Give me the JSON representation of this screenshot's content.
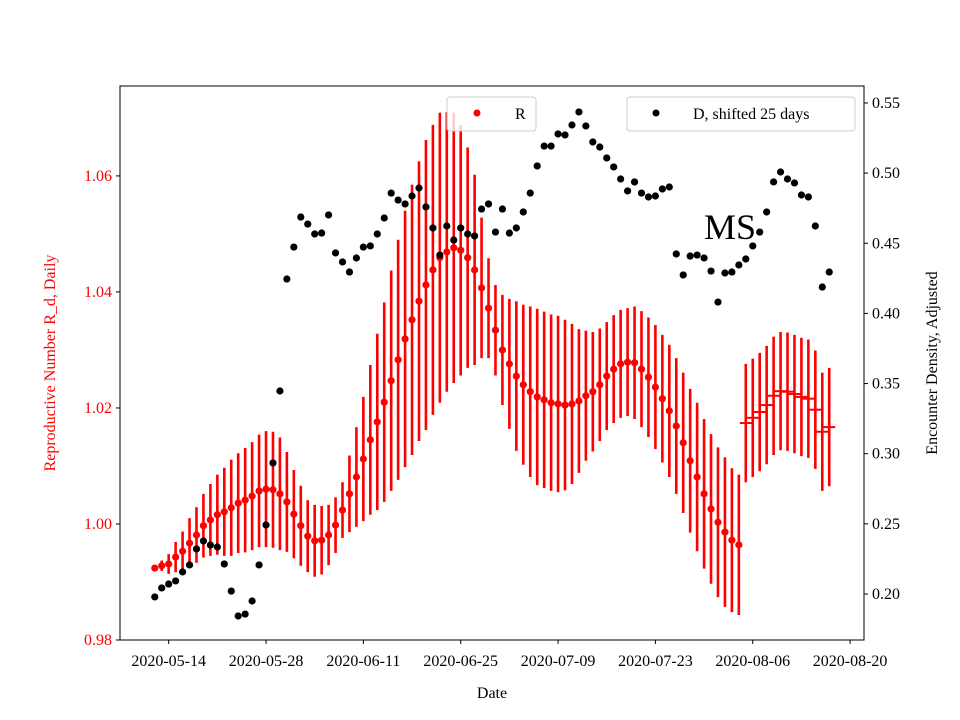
{
  "chart_data": {
    "type": "scatter",
    "xlabel": "Date",
    "ylabel_left": "Reproductive Number R_d, Daily",
    "ylabel_right": "Encounter Density, Adjusted",
    "annotation": "MS",
    "x_ticks": [
      "2020-05-14",
      "2020-05-28",
      "2020-06-11",
      "2020-06-25",
      "2020-07-09",
      "2020-07-23",
      "2020-08-06",
      "2020-08-20"
    ],
    "xlim": [
      "2020-05-07",
      "2020-08-22"
    ],
    "ylim_left": [
      0.98,
      1.0755
    ],
    "yticks_left": [
      "0.98",
      "1.00",
      "1.02",
      "1.04",
      "1.06"
    ],
    "ylim_right": [
      0.1672,
      0.5621
    ],
    "yticks_right": [
      "0.20",
      "0.25",
      "0.30",
      "0.35",
      "0.40",
      "0.45",
      "0.50",
      "0.55"
    ],
    "colors": {
      "R": "#ff0000",
      "D": "#000000"
    },
    "legend": [
      {
        "label": "R",
        "placement": "upper-center"
      },
      {
        "label": "D, shifted 25 days",
        "placement": "upper-right"
      }
    ],
    "dates": [
      "2020-05-12",
      "2020-05-13",
      "2020-05-14",
      "2020-05-15",
      "2020-05-16",
      "2020-05-17",
      "2020-05-18",
      "2020-05-19",
      "2020-05-20",
      "2020-05-21",
      "2020-05-22",
      "2020-05-23",
      "2020-05-24",
      "2020-05-25",
      "2020-05-26",
      "2020-05-27",
      "2020-05-28",
      "2020-05-29",
      "2020-05-30",
      "2020-05-31",
      "2020-06-01",
      "2020-06-02",
      "2020-06-03",
      "2020-06-04",
      "2020-06-05",
      "2020-06-06",
      "2020-06-07",
      "2020-06-08",
      "2020-06-09",
      "2020-06-10",
      "2020-06-11",
      "2020-06-12",
      "2020-06-13",
      "2020-06-14",
      "2020-06-15",
      "2020-06-16",
      "2020-06-17",
      "2020-06-18",
      "2020-06-19",
      "2020-06-20",
      "2020-06-21",
      "2020-06-22",
      "2020-06-23",
      "2020-06-24",
      "2020-06-25",
      "2020-06-26",
      "2020-06-27",
      "2020-06-28",
      "2020-06-29",
      "2020-06-30",
      "2020-07-01",
      "2020-07-02",
      "2020-07-03",
      "2020-07-04",
      "2020-07-05",
      "2020-07-06",
      "2020-07-07",
      "2020-07-08",
      "2020-07-09",
      "2020-07-10",
      "2020-07-11",
      "2020-07-12",
      "2020-07-13",
      "2020-07-14",
      "2020-07-15",
      "2020-07-16",
      "2020-07-17",
      "2020-07-18",
      "2020-07-19",
      "2020-07-20",
      "2020-07-21",
      "2020-07-22",
      "2020-07-23",
      "2020-07-24",
      "2020-07-25",
      "2020-07-26",
      "2020-07-27",
      "2020-07-28",
      "2020-07-29",
      "2020-07-30",
      "2020-07-31",
      "2020-08-01",
      "2020-08-02",
      "2020-08-03",
      "2020-08-04",
      "2020-08-05",
      "2020-08-06",
      "2020-08-07",
      "2020-08-08",
      "2020-08-09",
      "2020-08-10",
      "2020-08-11",
      "2020-08-12",
      "2020-08-13",
      "2020-08-14",
      "2020-08-15",
      "2020-08-16",
      "2020-08-17"
    ],
    "series": [
      {
        "name": "R",
        "axis": "left",
        "marker": "dot",
        "start_index": 0,
        "values": [
          0.9924,
          0.9928,
          0.9931,
          0.9943,
          0.9953,
          0.9967,
          0.9981,
          0.9997,
          1.0007,
          1.0016,
          1.0021,
          1.0028,
          1.0036,
          1.0041,
          1.0048,
          1.0057,
          1.006,
          1.0059,
          1.0052,
          1.0038,
          1.0017,
          0.9997,
          0.9979,
          0.9971,
          0.9972,
          0.9981,
          0.9998,
          1.0024,
          1.0052,
          1.0081,
          1.0112,
          1.0145,
          1.0176,
          1.021,
          1.0247,
          1.0283,
          1.0319,
          1.0352,
          1.0384,
          1.0412,
          1.0438,
          1.0459,
          1.0469,
          1.0476,
          1.0472,
          1.0459,
          1.0438,
          1.0407,
          1.0372,
          1.0334,
          1.03,
          1.0276,
          1.0255,
          1.024,
          1.0228,
          1.0219,
          1.0214,
          1.0209,
          1.0207,
          1.0205,
          1.0207,
          1.0212,
          1.0221,
          1.0228,
          1.024,
          1.0255,
          1.0267,
          1.0276,
          1.0279,
          1.0278,
          1.0267,
          1.0253,
          1.0236,
          1.0216,
          1.0195,
          1.0169,
          1.014,
          1.0109,
          1.0081,
          1.0052,
          1.0026,
          1.0003,
          0.9986,
          0.9972,
          0.9964
        ],
        "err": [
          0.0003,
          0.0009,
          0.0017,
          0.0026,
          0.0034,
          0.0043,
          0.0048,
          0.0055,
          0.0062,
          0.0069,
          0.0076,
          0.0083,
          0.0086,
          0.009,
          0.0093,
          0.0097,
          0.01,
          0.01,
          0.0097,
          0.0086,
          0.0076,
          0.0069,
          0.0062,
          0.0062,
          0.0059,
          0.0052,
          0.0048,
          0.0048,
          0.0066,
          0.0086,
          0.0107,
          0.0129,
          0.0152,
          0.0172,
          0.019,
          0.0207,
          0.0221,
          0.0233,
          0.0241,
          0.025,
          0.025,
          0.025,
          0.0241,
          0.0233,
          0.0216,
          0.019,
          0.0164,
          0.0121,
          0.0086,
          0.0078,
          0.0095,
          0.0112,
          0.0129,
          0.0138,
          0.0147,
          0.0152,
          0.0152,
          0.0152,
          0.0152,
          0.0147,
          0.0138,
          0.0124,
          0.0112,
          0.0103,
          0.0097,
          0.0093,
          0.0093,
          0.0093,
          0.0093,
          0.0097,
          0.01,
          0.0103,
          0.0107,
          0.011,
          0.0114,
          0.0117,
          0.0121,
          0.0124,
          0.0128,
          0.0129,
          0.0129,
          0.0129,
          0.0129,
          0.0124,
          0.0121
        ]
      },
      {
        "axis": "left",
        "marker": "hline",
        "start_index": 85,
        "values": [
          1.0174,
          1.0183,
          1.0193,
          1.0205,
          1.0221,
          1.0229,
          1.0228,
          1.0224,
          1.0219,
          1.0216,
          1.0197,
          1.0159,
          1.0167
        ],
        "err": [
          0.0102,
          0.0102,
          0.0102,
          0.0102,
          0.0102,
          0.0102,
          0.0102,
          0.0102,
          0.0102,
          0.0102,
          0.0102,
          0.0102,
          0.0102
        ]
      },
      {
        "name": "D, shifted 25 days",
        "axis": "right",
        "marker": "dot",
        "start_index": 0,
        "values": [
          0.1979,
          0.2043,
          0.2071,
          0.2093,
          0.2157,
          0.2207,
          0.2321,
          0.2378,
          0.2349,
          0.2335,
          0.2214,
          0.2021,
          0.1843,
          0.1857,
          0.195,
          0.2207,
          0.2492,
          0.2934,
          0.3447,
          0.4245,
          0.4473,
          0.4687,
          0.4637,
          0.4566,
          0.4573,
          0.4702,
          0.4431,
          0.4367,
          0.4295,
          0.4395,
          0.4473,
          0.4481,
          0.4566,
          0.468,
          0.4858,
          0.4808,
          0.478,
          0.4837,
          0.4894,
          0.4759,
          0.4609,
          0.4416,
          0.4623,
          0.4523,
          0.4609,
          0.4566,
          0.4552,
          0.4744,
          0.478,
          0.458,
          0.4744,
          0.4573,
          0.4609,
          0.4723,
          0.4858,
          0.5051,
          0.5193,
          0.5193,
          0.5279,
          0.5272,
          0.5343,
          0.5436,
          0.5336,
          0.5222,
          0.5186,
          0.5108,
          0.5044,
          0.4958,
          0.4873,
          0.4937,
          0.4858,
          0.483,
          0.4837,
          0.4887,
          0.4901,
          0.4424,
          0.4274,
          0.4409,
          0.4416,
          0.4395,
          0.4302,
          0.4081,
          0.4288,
          0.4295,
          0.4345,
          0.4388,
          0.4481,
          0.458,
          0.4723,
          0.4937,
          0.5008,
          0.4958,
          0.493,
          0.4844,
          0.483,
          0.4623,
          0.4188,
          0.4295
        ]
      }
    ]
  }
}
